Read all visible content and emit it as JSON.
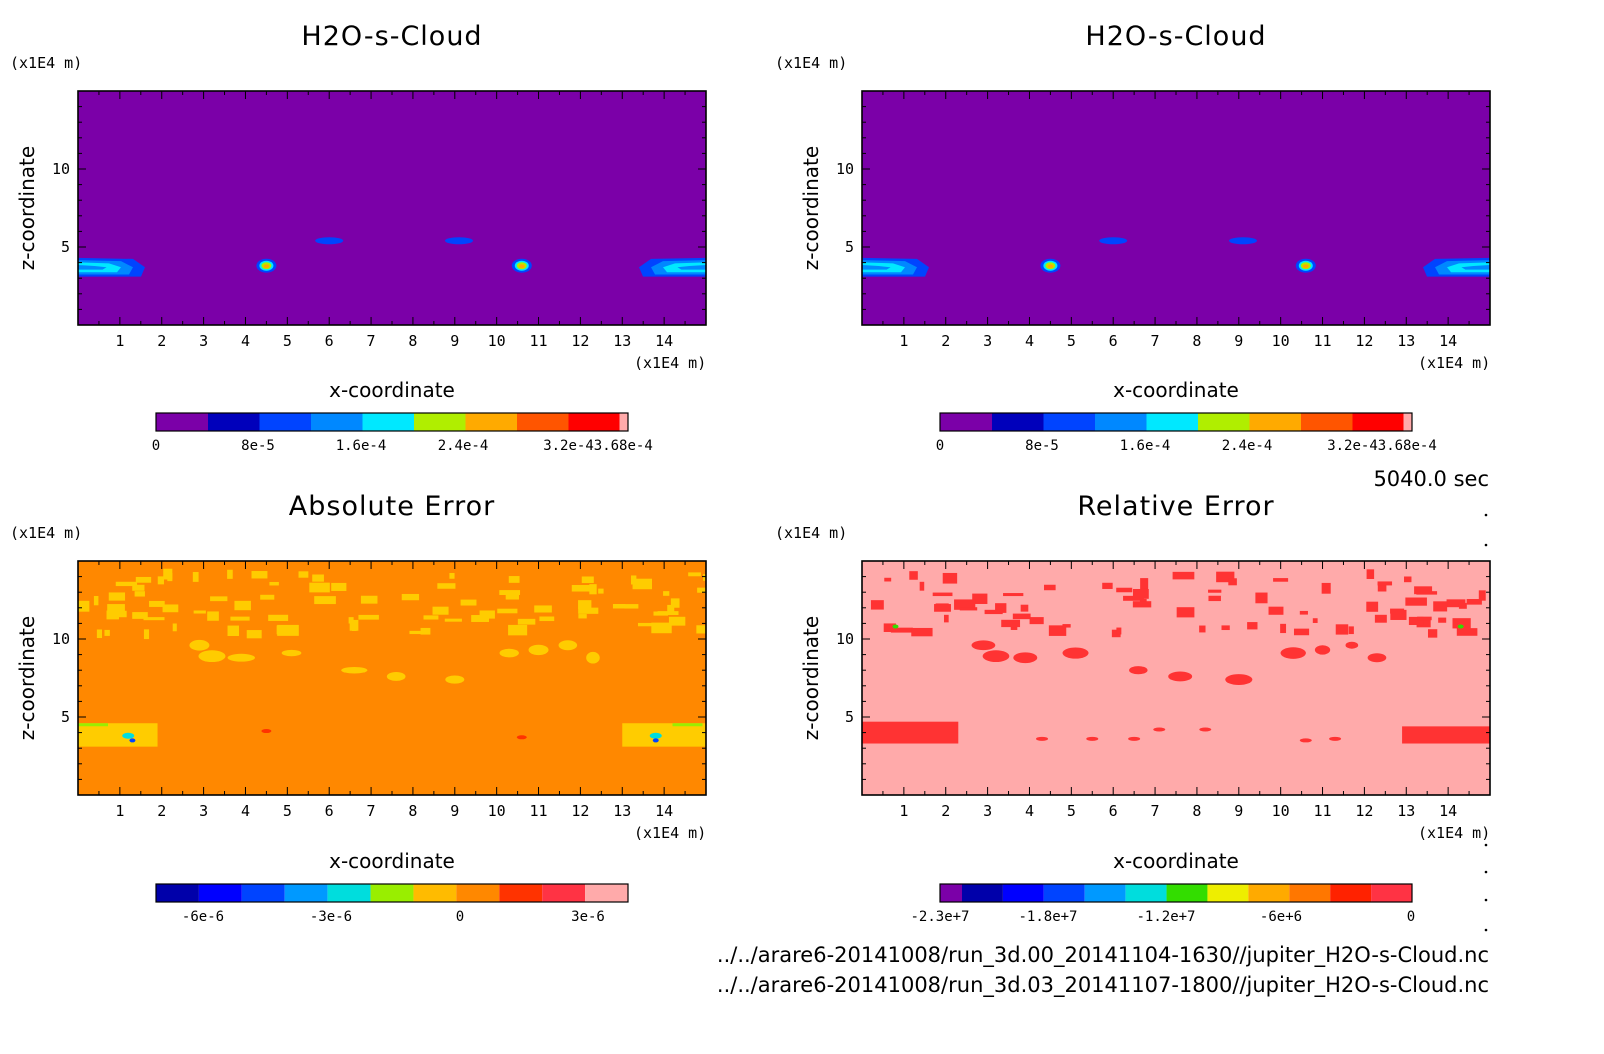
{
  "time_label": "5040.0 sec",
  "file_lines": [
    "../../arare6-20141008/run_3d.00_20141104-1630//jupiter_H2O-s-Cloud.nc",
    "../../arare6-20141008/run_3d.03_20141107-1800//jupiter_H2O-s-Cloud.nc"
  ],
  "chart_data": [
    {
      "type": "heatmap",
      "title": "H2O-s-Cloud",
      "xlabel": "x-coordinate",
      "ylabel": "z-coordinate",
      "x_unit": "(x1E4 m)",
      "y_unit": "(x1E4 m)",
      "xlim": [
        0,
        15
      ],
      "ylim": [
        0,
        15
      ],
      "xticks": [
        "1",
        "2",
        "3",
        "4",
        "5",
        "6",
        "7",
        "8",
        "9",
        "10",
        "11",
        "12",
        "13",
        "14"
      ],
      "yticks": [
        "5",
        "10"
      ],
      "background_color": "#7b00a8",
      "features": [
        {
          "kind": "edge-band",
          "x": [
            0,
            1.6
          ],
          "z": [
            3.1,
            4.3
          ]
        },
        {
          "kind": "edge-band",
          "x": [
            13.4,
            15
          ],
          "z": [
            3.1,
            4.3
          ]
        },
        {
          "kind": "blob",
          "x": 4.5,
          "z": 3.8,
          "level": 0.75
        },
        {
          "kind": "blob",
          "x": 10.6,
          "z": 3.8,
          "level": 0.75
        },
        {
          "kind": "blob",
          "x": 6.0,
          "z": 5.4,
          "level": 0.2
        },
        {
          "kind": "blob",
          "x": 9.1,
          "z": 5.4,
          "level": 0.2
        }
      ],
      "colorbar": {
        "colors": [
          "#7b00a8",
          "#0000bb",
          "#0044ff",
          "#0088ff",
          "#00e8ff",
          "#b0ee00",
          "#ffaa00",
          "#ff5500",
          "#ff0000",
          "#ffaaaa"
        ],
        "labels": [
          "0",
          "8e-5",
          "1.6e-4",
          "2.4e-4",
          "3.2e-43.68e-4"
        ]
      }
    },
    {
      "type": "heatmap",
      "title": "H2O-s-Cloud",
      "xlabel": "x-coordinate",
      "ylabel": "z-coordinate",
      "x_unit": "(x1E4 m)",
      "y_unit": "(x1E4 m)",
      "xlim": [
        0,
        15
      ],
      "ylim": [
        0,
        15
      ],
      "xticks": [
        "1",
        "2",
        "3",
        "4",
        "5",
        "6",
        "7",
        "8",
        "9",
        "10",
        "11",
        "12",
        "13",
        "14"
      ],
      "yticks": [
        "5",
        "10"
      ],
      "background_color": "#7b00a8",
      "features": [
        {
          "kind": "edge-band",
          "x": [
            0,
            1.6
          ],
          "z": [
            3.1,
            4.3
          ]
        },
        {
          "kind": "edge-band",
          "x": [
            13.4,
            15
          ],
          "z": [
            3.1,
            4.3
          ]
        },
        {
          "kind": "blob",
          "x": 4.5,
          "z": 3.8,
          "level": 0.75
        },
        {
          "kind": "blob",
          "x": 10.6,
          "z": 3.8,
          "level": 0.75
        },
        {
          "kind": "blob",
          "x": 6.0,
          "z": 5.4,
          "level": 0.2
        },
        {
          "kind": "blob",
          "x": 9.1,
          "z": 5.4,
          "level": 0.2
        }
      ],
      "colorbar": {
        "colors": [
          "#7b00a8",
          "#0000bb",
          "#0044ff",
          "#0088ff",
          "#00e8ff",
          "#b0ee00",
          "#ffaa00",
          "#ff5500",
          "#ff0000",
          "#ffaaaa"
        ],
        "labels": [
          "0",
          "8e-5",
          "1.6e-4",
          "2.4e-4",
          "3.2e-43.68e-4"
        ]
      }
    },
    {
      "type": "heatmap",
      "title": "Absolute Error",
      "xlabel": "x-coordinate",
      "ylabel": "z-coordinate",
      "x_unit": "(x1E4 m)",
      "y_unit": "(x1E4 m)",
      "xlim": [
        0,
        15
      ],
      "ylim": [
        0,
        15
      ],
      "xticks": [
        "1",
        "2",
        "3",
        "4",
        "5",
        "6",
        "7",
        "8",
        "9",
        "10",
        "11",
        "12",
        "13",
        "14"
      ],
      "yticks": [
        "5",
        "10"
      ],
      "background_color": "#ff8800",
      "patch_color": "#ffcc00",
      "colorbar": {
        "colors": [
          "#0000aa",
          "#0000ff",
          "#0044ff",
          "#0099ff",
          "#00dddd",
          "#99ee00",
          "#ffbb00",
          "#ff8800",
          "#ff3300",
          "#ff3344",
          "#ffaaaa"
        ],
        "labels": [
          "-6e-6",
          "-3e-6",
          "0",
          "3e-6"
        ]
      }
    },
    {
      "type": "heatmap",
      "title": "Relative Error",
      "xlabel": "x-coordinate",
      "ylabel": "z-coordinate",
      "x_unit": "(x1E4 m)",
      "y_unit": "(x1E4 m)",
      "xlim": [
        0,
        15
      ],
      "ylim": [
        0,
        15
      ],
      "xticks": [
        "1",
        "2",
        "3",
        "4",
        "5",
        "6",
        "7",
        "8",
        "9",
        "10",
        "11",
        "12",
        "13",
        "14"
      ],
      "yticks": [
        "5",
        "10"
      ],
      "background_color": "#ffaaaa",
      "patch_color": "#ff3333",
      "colorbar": {
        "colors": [
          "#7b00a8",
          "#0000aa",
          "#0000ff",
          "#0044ff",
          "#0099ff",
          "#00dddd",
          "#33dd00",
          "#eeee00",
          "#ffaa00",
          "#ff7700",
          "#ff2200",
          "#ff3344"
        ],
        "labels": [
          "-2.3e+7",
          "-1.8e+7",
          "-1.2e+7",
          "-6e+6",
          "0"
        ]
      }
    }
  ]
}
